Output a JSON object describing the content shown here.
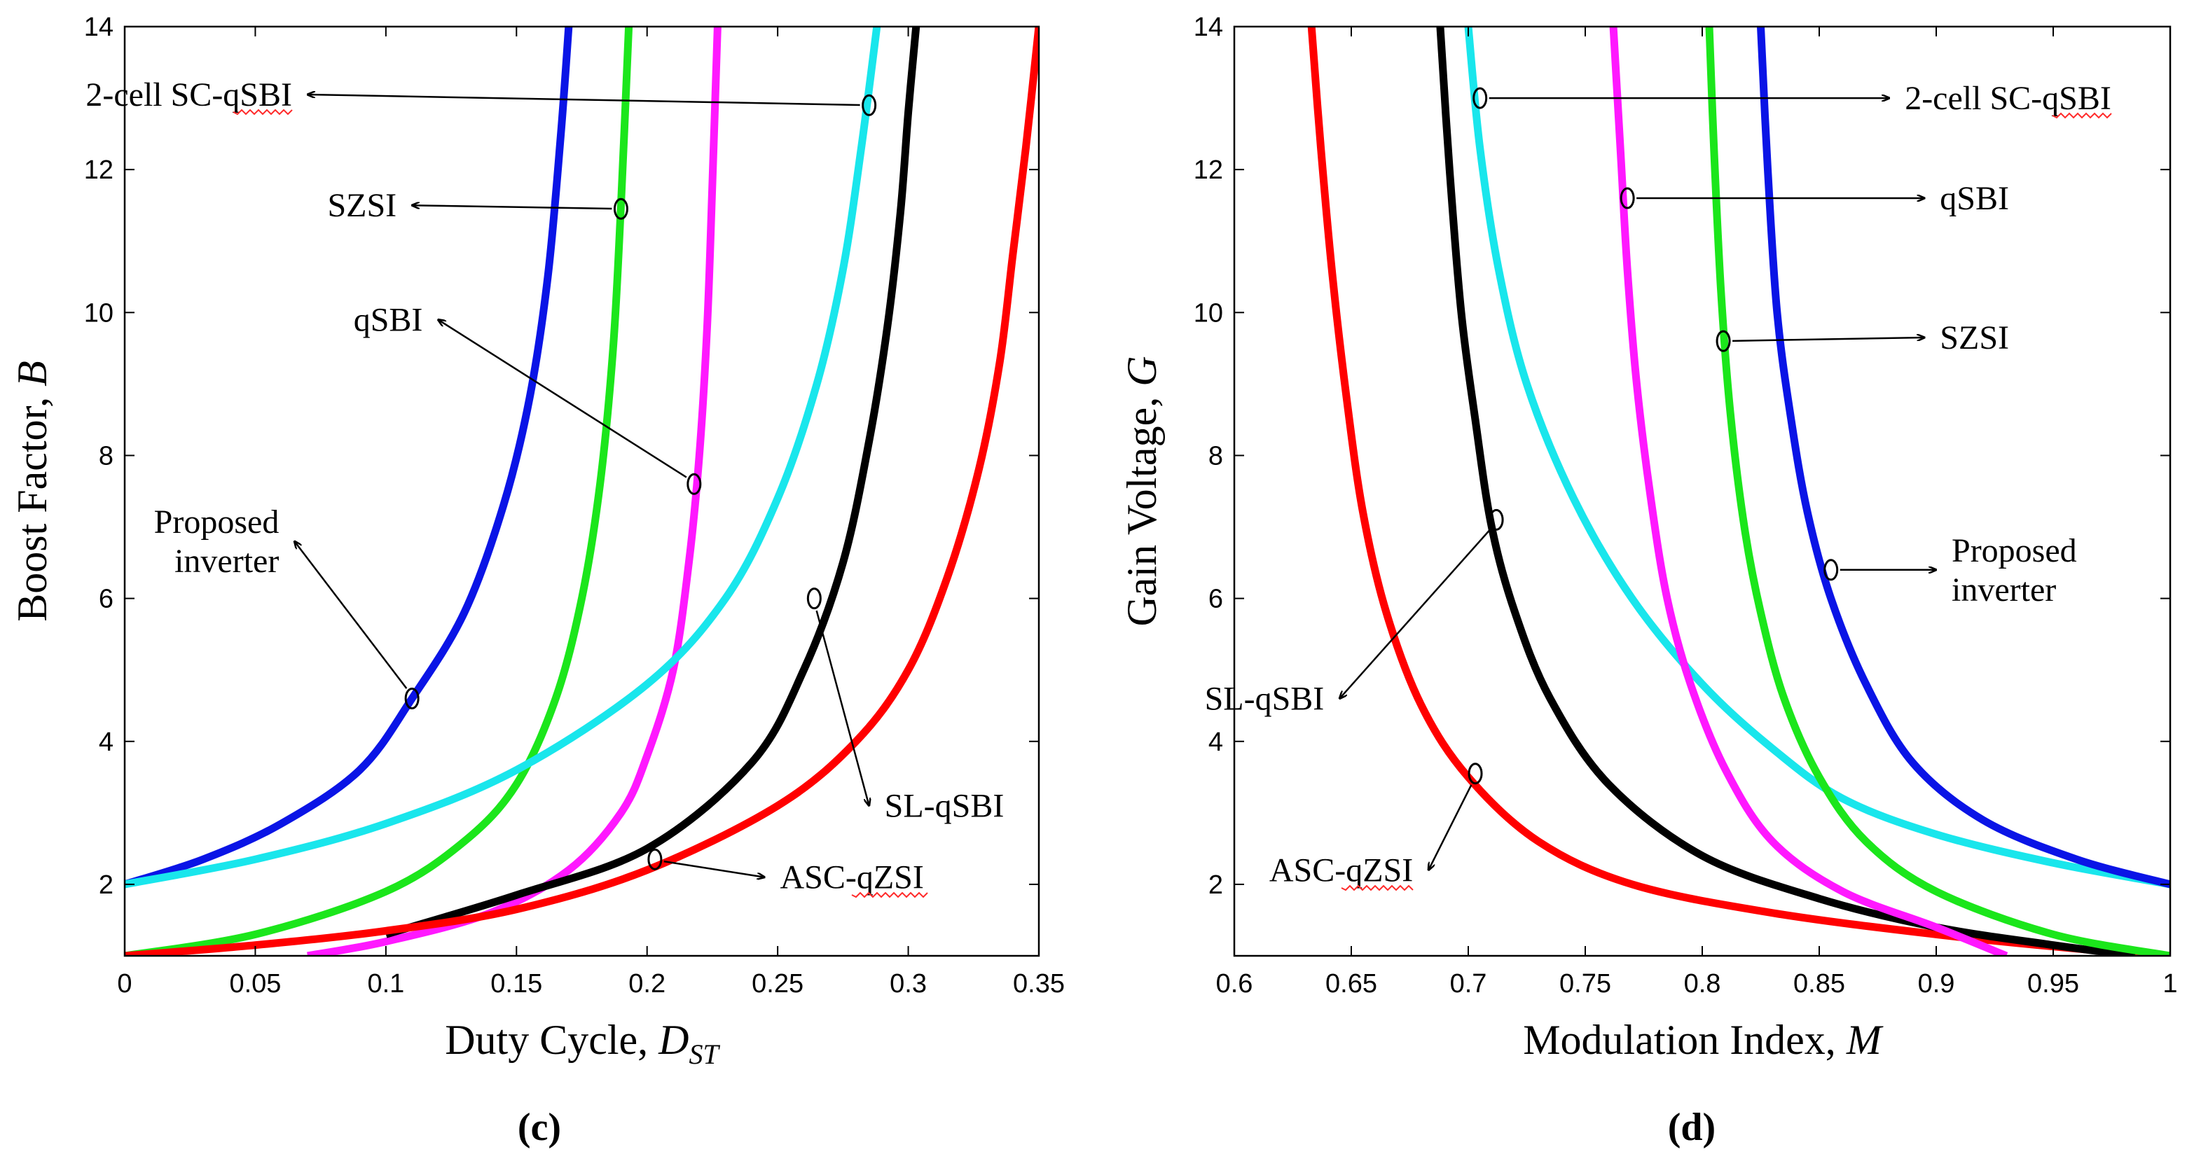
{
  "chart_data": [
    {
      "type": "line",
      "panel": "c",
      "caption": "(c)",
      "xlabel": "Duty Cycle, ",
      "xlabel_var": "D",
      "xlabel_sub": "ST",
      "ylabel": "Boost Factor, ",
      "ylabel_var": "B",
      "xlim": [
        0,
        0.35
      ],
      "ylim": [
        1,
        14
      ],
      "xticks": [
        0,
        0.05,
        0.1,
        0.15,
        0.2,
        0.25,
        0.3,
        0.35
      ],
      "xtick_labels": [
        "0",
        "0.05",
        "0.1",
        "0.15",
        "0.2",
        "0.25",
        "0.3",
        "0.35"
      ],
      "yticks": [
        2,
        4,
        6,
        8,
        10,
        12,
        14
      ],
      "ytick_labels": [
        "2",
        "4",
        "6",
        "8",
        "10",
        "12",
        "14"
      ],
      "series": [
        {
          "name": "Proposed inverter",
          "color": "#0a14e6",
          "x": [
            0,
            0.03,
            0.06,
            0.09,
            0.11,
            0.13,
            0.145,
            0.155,
            0.162,
            0.167,
            0.17
          ],
          "y": [
            2.0,
            2.35,
            2.85,
            3.6,
            4.6,
            5.8,
            7.3,
            8.8,
            10.5,
            12.5,
            14
          ]
        },
        {
          "name": "SZSI",
          "color": "#1be61b",
          "x": [
            0,
            0.05,
            0.1,
            0.13,
            0.15,
            0.165,
            0.175,
            0.182,
            0.187,
            0.19,
            0.193
          ],
          "y": [
            1.0,
            1.3,
            1.9,
            2.6,
            3.4,
            4.6,
            6.0,
            7.6,
            9.5,
            11.5,
            14
          ]
        },
        {
          "name": "qSBI",
          "color": "#ff18ff",
          "x": [
            0.07,
            0.1,
            0.14,
            0.17,
            0.19,
            0.2,
            0.21,
            0.216,
            0.22,
            0.223,
            0.225,
            0.227
          ],
          "y": [
            1.0,
            1.2,
            1.6,
            2.2,
            3.0,
            3.8,
            5.0,
            6.5,
            8.0,
            9.8,
            11.8,
            14
          ]
        },
        {
          "name": "2-cell SC-qSBI",
          "color": "#19e6ec",
          "x": [
            0,
            0.05,
            0.1,
            0.15,
            0.2,
            0.23,
            0.25,
            0.265,
            0.275,
            0.282,
            0.288
          ],
          "y": [
            2.0,
            2.35,
            2.85,
            3.6,
            4.8,
            6.0,
            7.4,
            9.0,
            10.6,
            12.3,
            14
          ]
        },
        {
          "name": "SL-qSBI",
          "color": "#000000",
          "x": [
            0.1,
            0.15,
            0.2,
            0.24,
            0.26,
            0.275,
            0.285,
            0.292,
            0.297,
            0.3,
            0.303
          ],
          "y": [
            1.3,
            1.85,
            2.5,
            3.7,
            5.0,
            6.5,
            8.2,
            9.8,
            11.4,
            12.8,
            14
          ]
        },
        {
          "name": "ASC-qZSI",
          "color": "#ff0000",
          "x": [
            0,
            0.05,
            0.1,
            0.15,
            0.2,
            0.25,
            0.28,
            0.3,
            0.315,
            0.327,
            0.335,
            0.34,
            0.345,
            0.35
          ],
          "y": [
            1.0,
            1.15,
            1.35,
            1.65,
            2.2,
            3.1,
            4.0,
            5.0,
            6.3,
            7.8,
            9.3,
            10.8,
            12.3,
            14
          ]
        }
      ],
      "annotations": [
        {
          "text": "2-cell SC-qSBI",
          "underlined": "qSBI",
          "marker": [
            0.285,
            12.9
          ],
          "label_at": [
            0.07,
            13.05
          ],
          "arrow_to": "label"
        },
        {
          "text": "SZSI",
          "marker": [
            0.19,
            11.45
          ],
          "label_at": [
            0.11,
            11.5
          ],
          "arrow_to": "label"
        },
        {
          "text": "qSBI",
          "marker": [
            0.218,
            7.6
          ],
          "label_at": [
            0.12,
            9.9
          ],
          "arrow_to": "label"
        },
        {
          "text": "Proposed",
          "text2": "inverter",
          "marker": [
            0.11,
            4.6
          ],
          "label_at": [
            0.065,
            6.8
          ],
          "arrow_to": "label"
        },
        {
          "text": "SL-qSBI",
          "marker": [
            0.264,
            6.0
          ],
          "label_at": [
            0.285,
            3.1
          ],
          "arrow_to": "label"
        },
        {
          "text": "ASC-qZSI",
          "underlined": "qZSI",
          "marker": [
            0.203,
            2.35
          ],
          "label_at": [
            0.245,
            2.1
          ],
          "arrow_to": "label"
        }
      ]
    },
    {
      "type": "line",
      "panel": "d",
      "caption": "(d)",
      "xlabel": "Modulation Index, ",
      "xlabel_var": "M",
      "xlabel_sub": "",
      "ylabel": "Gain Voltage, ",
      "ylabel_var": "G",
      "xlim": [
        0.6,
        1
      ],
      "ylim": [
        1,
        14
      ],
      "xticks": [
        0.6,
        0.65,
        0.7,
        0.75,
        0.8,
        0.85,
        0.9,
        0.95,
        1
      ],
      "xtick_labels": [
        "0.6",
        "0.65",
        "0.7",
        "0.75",
        "0.8",
        "0.85",
        "0.9",
        "0.95",
        "1"
      ],
      "yticks": [
        2,
        4,
        6,
        8,
        10,
        12,
        14
      ],
      "ytick_labels": [
        "2",
        "4",
        "6",
        "8",
        "10",
        "12",
        "14"
      ],
      "series": [
        {
          "name": "ASC-qZSI",
          "color": "#ff0000",
          "x": [
            0.633,
            0.637,
            0.642,
            0.648,
            0.655,
            0.665,
            0.68,
            0.7,
            0.73,
            0.77,
            0.83,
            0.9,
            0.96,
            1.0
          ],
          "y": [
            14,
            12.3,
            10.5,
            8.8,
            7.2,
            5.8,
            4.5,
            3.5,
            2.6,
            2.0,
            1.6,
            1.3,
            1.1,
            1.0
          ]
        },
        {
          "name": "SL-qSBI",
          "color": "#000000",
          "x": [
            0.688,
            0.692,
            0.697,
            0.703,
            0.71,
            0.72,
            0.735,
            0.76,
            0.8,
            0.85,
            0.9,
            0.95,
            0.985
          ],
          "y": [
            14,
            12.0,
            10.0,
            8.5,
            7.0,
            5.8,
            4.6,
            3.4,
            2.4,
            1.8,
            1.4,
            1.15,
            1.0
          ]
        },
        {
          "name": "2-cell SC-qSBI",
          "color": "#19e6ec",
          "x": [
            0.7,
            0.705,
            0.713,
            0.725,
            0.745,
            0.77,
            0.8,
            0.83,
            0.86,
            0.9,
            0.95,
            1.0
          ],
          "y": [
            14,
            12.3,
            10.6,
            9.0,
            7.4,
            6.0,
            4.8,
            3.9,
            3.2,
            2.7,
            2.3,
            2.0
          ]
        },
        {
          "name": "qSBI",
          "color": "#ff18ff",
          "x": [
            0.762,
            0.765,
            0.768,
            0.772,
            0.778,
            0.785,
            0.795,
            0.81,
            0.83,
            0.86,
            0.9,
            0.93
          ],
          "y": [
            14,
            12.3,
            10.6,
            9.0,
            7.4,
            6.0,
            4.8,
            3.6,
            2.6,
            1.9,
            1.4,
            1.0
          ]
        },
        {
          "name": "SZSI",
          "color": "#1be61b",
          "x": [
            0.803,
            0.805,
            0.808,
            0.812,
            0.818,
            0.825,
            0.835,
            0.85,
            0.87,
            0.9,
            0.95,
            1.0
          ],
          "y": [
            14,
            12.3,
            10.3,
            8.6,
            7.0,
            5.8,
            4.6,
            3.5,
            2.6,
            1.9,
            1.3,
            1.0
          ]
        },
        {
          "name": "Proposed inverter",
          "color": "#0a14e6",
          "x": [
            0.825,
            0.828,
            0.832,
            0.838,
            0.845,
            0.855,
            0.87,
            0.89,
            0.92,
            0.96,
            1.0
          ],
          "y": [
            14,
            12.0,
            10.0,
            8.5,
            7.2,
            6.0,
            4.8,
            3.7,
            2.9,
            2.35,
            2.0
          ]
        }
      ],
      "annotations": [
        {
          "text": "2-cell SC-qSBI",
          "underlined": "qSBI",
          "marker": [
            0.705,
            13.0
          ],
          "label_at": [
            0.88,
            13.0
          ],
          "arrow_to": "label"
        },
        {
          "text": "qSBI",
          "marker": [
            0.768,
            11.6
          ],
          "label_at": [
            0.895,
            11.6
          ],
          "arrow_to": "label"
        },
        {
          "text": "SZSI",
          "marker": [
            0.809,
            9.6
          ],
          "label_at": [
            0.895,
            9.65
          ],
          "arrow_to": "label"
        },
        {
          "text": "Proposed",
          "text2": "inverter",
          "marker": [
            0.855,
            6.4
          ],
          "label_at": [
            0.9,
            6.4
          ],
          "arrow_to": "label"
        },
        {
          "text": "SL-qSBI",
          "marker": [
            0.712,
            7.1
          ],
          "label_at": [
            0.645,
            4.6
          ],
          "arrow_to": "label"
        },
        {
          "text": "ASC-qZSI",
          "underlined": "qZSI",
          "marker": [
            0.703,
            3.55
          ],
          "label_at": [
            0.683,
            2.2
          ],
          "arrow_to": "label"
        }
      ]
    }
  ]
}
